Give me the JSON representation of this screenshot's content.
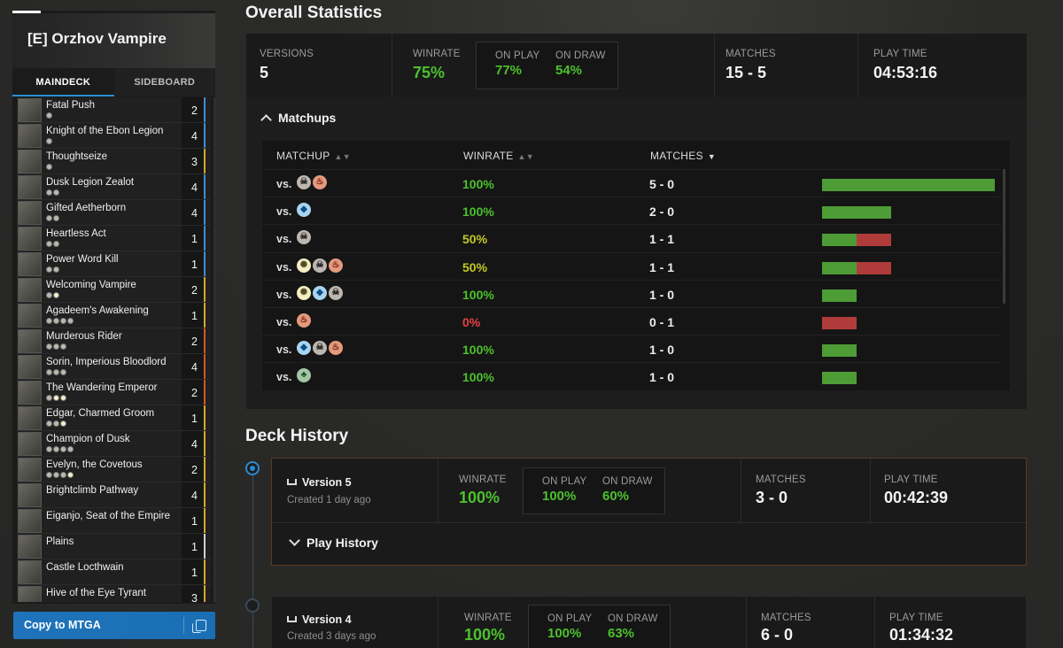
{
  "deck": {
    "title": "[E] Orzhov Vampire",
    "tabs": [
      "MAINDECK",
      "SIDEBOARD"
    ],
    "cards": [
      {
        "name": "Fatal Push",
        "qty": "2",
        "bar": "#3f8fd0",
        "pips": "b"
      },
      {
        "name": "Knight of the Ebon Legion",
        "qty": "4",
        "bar": "#3f8fd0",
        "pips": "b"
      },
      {
        "name": "Thoughtseize",
        "qty": "3",
        "bar": "#d5a62c",
        "pips": "b"
      },
      {
        "name": "Dusk Legion Zealot",
        "qty": "4",
        "bar": "#3f8fd0",
        "pips": "bb"
      },
      {
        "name": "Gifted Aetherborn",
        "qty": "4",
        "bar": "#3f8fd0",
        "pips": "bb"
      },
      {
        "name": "Heartless Act",
        "qty": "1",
        "bar": "#3f8fd0",
        "pips": "bb"
      },
      {
        "name": "Power Word Kill",
        "qty": "1",
        "bar": "#3f8fd0",
        "pips": "bb"
      },
      {
        "name": "Welcoming Vampire",
        "qty": "2",
        "bar": "#d5a62c",
        "pips": "bw"
      },
      {
        "name": "Agadeem's Awakening",
        "qty": "1",
        "bar": "#d5a62c",
        "pips": "bbbb"
      },
      {
        "name": "Murderous Rider",
        "qty": "2",
        "bar": "#d05a2a",
        "pips": "bbb"
      },
      {
        "name": "Sorin, Imperious Bloodlord",
        "qty": "4",
        "bar": "#d05a2a",
        "pips": "bbb"
      },
      {
        "name": "The Wandering Emperor",
        "qty": "2",
        "bar": "#d05a2a",
        "pips": "bww"
      },
      {
        "name": "Edgar, Charmed Groom",
        "qty": "1",
        "bar": "#d5a62c",
        "pips": "bbw"
      },
      {
        "name": "Champion of Dusk",
        "qty": "4",
        "bar": "#d5a62c",
        "pips": "bbbb"
      },
      {
        "name": "Evelyn, the Covetous",
        "qty": "2",
        "bar": "#d5a62c",
        "pips": "bbbw"
      },
      {
        "name": "Brightclimb Pathway",
        "qty": "4",
        "bar": "#d5a62c",
        "pips": ""
      },
      {
        "name": "Eiganjo, Seat of the Empire",
        "qty": "1",
        "bar": "#d5a62c",
        "pips": ""
      },
      {
        "name": "Plains",
        "qty": "1",
        "bar": "#d0d0d0",
        "pips": ""
      },
      {
        "name": "Castle Locthwain",
        "qty": "1",
        "bar": "#d5a62c",
        "pips": ""
      },
      {
        "name": "Hive of the Eye Tyrant",
        "qty": "3",
        "bar": "#d5a62c",
        "pips": ""
      }
    ],
    "copy_label": "Copy to MTGA"
  },
  "overall": {
    "title": "Overall Statistics",
    "versions_label": "VERSIONS",
    "versions": "5",
    "winrate_label": "WINRATE",
    "winrate": "75%",
    "on_play_label": "ON PLAY",
    "on_play": "77%",
    "on_draw_label": "ON DRAW",
    "on_draw": "54%",
    "matches_label": "MATCHES",
    "matches": "15 - 5",
    "playtime_label": "PLAY TIME",
    "playtime": "04:53:16"
  },
  "matchups": {
    "title": "Matchups",
    "headers": {
      "matchup": "MATCHUP",
      "winrate": "WINRATE",
      "matches": "MATCHES"
    },
    "vs_label": "vs.",
    "rows": [
      {
        "colors": [
          "b",
          "r"
        ],
        "winrate": "100%",
        "tone": "green",
        "record": "5 - 0",
        "wins": 5,
        "losses": 0
      },
      {
        "colors": [
          "u"
        ],
        "winrate": "100%",
        "tone": "green",
        "record": "2 - 0",
        "wins": 2,
        "losses": 0
      },
      {
        "colors": [
          "b"
        ],
        "winrate": "50%",
        "tone": "yellow",
        "record": "1 - 1",
        "wins": 1,
        "losses": 1
      },
      {
        "colors": [
          "w",
          "b",
          "r"
        ],
        "winrate": "50%",
        "tone": "yellow",
        "record": "1 - 1",
        "wins": 1,
        "losses": 1
      },
      {
        "colors": [
          "w",
          "u",
          "b"
        ],
        "winrate": "100%",
        "tone": "green",
        "record": "1 - 0",
        "wins": 1,
        "losses": 0
      },
      {
        "colors": [
          "r"
        ],
        "winrate": "0%",
        "tone": "red",
        "record": "0 - 1",
        "wins": 0,
        "losses": 1
      },
      {
        "colors": [
          "u",
          "b",
          "r"
        ],
        "winrate": "100%",
        "tone": "green",
        "record": "1 - 0",
        "wins": 1,
        "losses": 0
      },
      {
        "colors": [
          "g"
        ],
        "winrate": "100%",
        "tone": "green",
        "record": "1 - 0",
        "wins": 1,
        "losses": 0
      }
    ]
  },
  "history": {
    "title": "Deck History",
    "versions": [
      {
        "name": "Version 5",
        "created": "Created 1 day ago",
        "winrate_label": "WINRATE",
        "winrate": "100%",
        "on_play_label": "ON PLAY",
        "on_play": "100%",
        "on_draw_label": "ON DRAW",
        "on_draw": "60%",
        "matches_label": "MATCHES",
        "matches": "3 - 0",
        "playtime_label": "PLAY TIME",
        "playtime": "00:42:39",
        "play_history_label": "Play History"
      },
      {
        "name": "Version 4",
        "created": "Created 3 days ago",
        "winrate_label": "WINRATE",
        "winrate": "100%",
        "on_play_label": "ON PLAY",
        "on_play": "100%",
        "on_draw_label": "ON DRAW",
        "on_draw": "63%",
        "matches_label": "MATCHES",
        "matches": "6 - 0",
        "playtime_label": "PLAY TIME",
        "playtime": "01:34:32"
      }
    ]
  }
}
